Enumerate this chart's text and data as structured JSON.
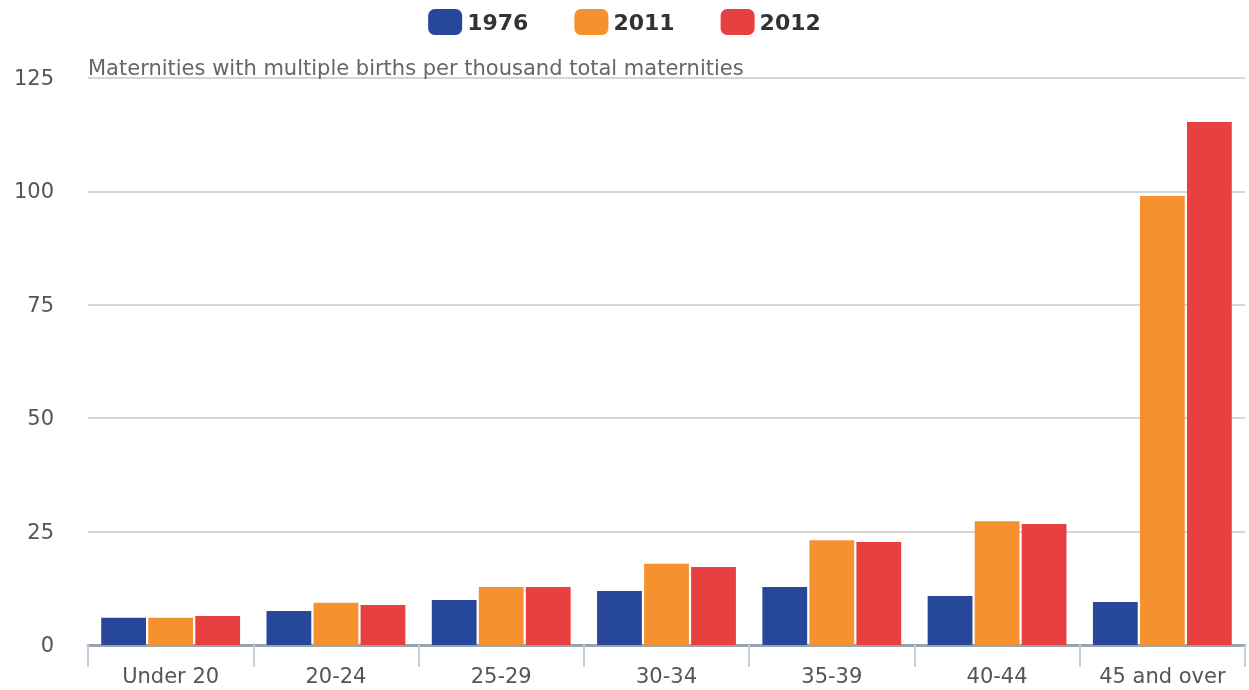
{
  "chart_data": {
    "type": "bar",
    "ylabel": "Maternities with multiple births per thousand total maternities",
    "categories": [
      "Under 20",
      "20-24",
      "25-29",
      "30-34",
      "35-39",
      "40-44",
      "45 and over"
    ],
    "series": [
      {
        "name": "1976",
        "color": "#27479a",
        "values": [
          6.0,
          7.5,
          9.9,
          11.9,
          12.8,
          10.8,
          9.5
        ]
      },
      {
        "name": "2011",
        "color": "#f5922f",
        "values": [
          6.0,
          9.3,
          12.8,
          17.9,
          23.1,
          27.3,
          99.0
        ]
      },
      {
        "name": "2012",
        "color": "#e84040",
        "values": [
          6.4,
          8.8,
          12.8,
          17.2,
          22.7,
          26.7,
          115.3
        ]
      }
    ],
    "ylim": [
      0,
      125
    ],
    "yticks": [
      0,
      25,
      50,
      75,
      100,
      125
    ],
    "grid": "y",
    "legend": "top"
  }
}
